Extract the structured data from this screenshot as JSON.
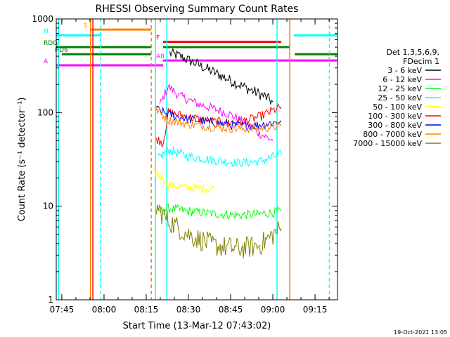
{
  "chart_data": {
    "type": "line",
    "title": "RHESSI Observing Summary Count Rates",
    "xlabel": "Start Time (13-Mar-12 07:43:02)",
    "ylabel": "Count Rate (s⁻¹ detector⁻¹)",
    "yscale": "log",
    "xlim": [
      7.717,
      9.383
    ],
    "ylim": [
      1,
      1000
    ],
    "x_ticks": [
      {
        "t": 7.75,
        "label": "07:45"
      },
      {
        "t": 8.0,
        "label": "08:00"
      },
      {
        "t": 8.25,
        "label": "08:15"
      },
      {
        "t": 8.5,
        "label": "08:30"
      },
      {
        "t": 8.75,
        "label": "08:45"
      },
      {
        "t": 9.0,
        "label": "09:00"
      },
      {
        "t": 9.25,
        "label": "09:15"
      }
    ],
    "y_ticks": [
      {
        "v": 1,
        "label": "1"
      },
      {
        "v": 10,
        "label": "10"
      },
      {
        "v": 100,
        "label": "100"
      },
      {
        "v": 1000,
        "label": "1000"
      }
    ],
    "legend_header": [
      "Det 1,3,5,6,9,",
      "FDecim 1"
    ],
    "series": [
      {
        "name": "3 - 6 keV",
        "color": "#000000",
        "pts": [
          [
            8.39,
            430
          ],
          [
            8.45,
            400
          ],
          [
            8.55,
            330
          ],
          [
            8.65,
            270
          ],
          [
            8.75,
            220
          ],
          [
            8.85,
            180
          ],
          [
            8.95,
            150
          ],
          [
            9.0,
            130
          ]
        ]
      },
      {
        "name": "6 - 12 keV",
        "color": "#ff00ff",
        "pts": [
          [
            8.33,
            120
          ],
          [
            8.38,
            190
          ],
          [
            8.45,
            150
          ],
          [
            8.55,
            125
          ],
          [
            8.65,
            110
          ],
          [
            8.75,
            95
          ],
          [
            8.85,
            75
          ],
          [
            8.92,
            60
          ],
          [
            9.0,
            50
          ]
        ]
      },
      {
        "name": "12 - 25 keV",
        "color": "#00ff00",
        "pts": [
          [
            8.31,
            8.5
          ],
          [
            8.38,
            9.5
          ],
          [
            8.5,
            8.8
          ],
          [
            8.65,
            8.3
          ],
          [
            8.8,
            8.0
          ],
          [
            8.92,
            8.2
          ],
          [
            9.05,
            8.8
          ]
        ]
      },
      {
        "name": "25 - 50 keV",
        "color": "#00ffff",
        "pts": [
          [
            8.32,
            32
          ],
          [
            8.38,
            40
          ],
          [
            8.5,
            34
          ],
          [
            8.65,
            31
          ],
          [
            8.8,
            29
          ],
          [
            8.92,
            30
          ],
          [
            9.05,
            36
          ]
        ]
      },
      {
        "name": "50 - 100 keV",
        "color": "#ffff00",
        "pts": [
          [
            8.3,
            23
          ],
          [
            8.35,
            20
          ],
          [
            8.38,
            17
          ],
          [
            8.45,
            16
          ],
          [
            8.55,
            15.5
          ],
          [
            8.65,
            15.5
          ]
        ]
      },
      {
        "name": "100 - 300 keV",
        "color": "#ff0000",
        "pts": [
          [
            8.31,
            53
          ],
          [
            8.35,
            47
          ],
          [
            8.38,
            100
          ],
          [
            8.5,
            90
          ],
          [
            8.65,
            80
          ],
          [
            8.8,
            78
          ],
          [
            8.92,
            90
          ],
          [
            9.05,
            115
          ]
        ]
      },
      {
        "name": "300 - 800 keV",
        "color": "#0000ff",
        "pts": [
          [
            8.31,
            108
          ],
          [
            8.38,
            96
          ],
          [
            8.5,
            85
          ],
          [
            8.65,
            78
          ],
          [
            8.8,
            72
          ],
          [
            8.92,
            74
          ],
          [
            9.05,
            80
          ]
        ]
      },
      {
        "name": "800 - 7000 keV",
        "color": "#ff8000",
        "pts": [
          [
            8.31,
            108
          ],
          [
            8.38,
            83
          ],
          [
            8.5,
            75
          ],
          [
            8.65,
            70
          ],
          [
            8.8,
            67
          ],
          [
            8.92,
            68
          ],
          [
            9.05,
            72
          ]
        ]
      },
      {
        "name": "7000 - 15000 keV",
        "color": "#808000",
        "pts": [
          [
            8.31,
            9.8
          ],
          [
            8.38,
            7
          ],
          [
            8.5,
            5
          ],
          [
            8.65,
            3.8
          ],
          [
            8.8,
            3.5
          ],
          [
            8.92,
            3.8
          ],
          [
            9.05,
            5.8
          ]
        ]
      }
    ],
    "flag_bars": [
      {
        "label": "S",
        "color": "#ff8000",
        "v": 770,
        "segs": [
          [
            7.92,
            8.28
          ]
        ]
      },
      {
        "label": "N",
        "color": "#00ffff",
        "v": 670,
        "segs": [
          [
            7.717,
            7.98
          ],
          [
            9.125,
            9.383
          ]
        ]
      },
      {
        "label": "F",
        "color": "#ff0000",
        "v": 570,
        "segs": [
          [
            8.35,
            9.05
          ]
        ]
      },
      {
        "label": "RDG",
        "color": "#008000",
        "v": 500,
        "segs": [
          [
            7.717,
            8.28
          ],
          [
            8.35,
            9.1
          ]
        ]
      },
      {
        "label": "RD6",
        "color": "#008000",
        "v": 420,
        "segs": [
          [
            7.75,
            8.28
          ],
          [
            9.13,
            9.383
          ]
        ]
      },
      {
        "label": "A0",
        "color": "#ff00ff",
        "v": 360,
        "segs": [
          [
            8.35,
            9.383
          ]
        ]
      },
      {
        "label": "A",
        "color": "#ff00ff",
        "v": 320,
        "segs": [
          [
            7.717,
            8.35
          ]
        ]
      }
    ],
    "vlines": [
      {
        "t": 7.73,
        "color": "#00ffff",
        "dash": false
      },
      {
        "t": 7.92,
        "color": "#ff8000",
        "dash": false
      },
      {
        "t": 7.934,
        "color": "#ff0000",
        "dash": false
      },
      {
        "t": 7.98,
        "color": "#00ffff",
        "dash": true
      },
      {
        "t": 8.28,
        "color": "#ff8000",
        "dash": true
      },
      {
        "t": 8.305,
        "color": "#00ffff",
        "dash": false
      },
      {
        "t": 8.372,
        "color": "#00ffff",
        "dash": false
      },
      {
        "t": 9.025,
        "color": "#00ffff",
        "dash": false
      },
      {
        "t": 9.1,
        "color": "#ff8000",
        "dash": false
      },
      {
        "t": 9.335,
        "color": "#00ffff",
        "dash": true
      }
    ]
  },
  "footer": {
    "timestamp": "19-Oct-2021 13:05"
  }
}
